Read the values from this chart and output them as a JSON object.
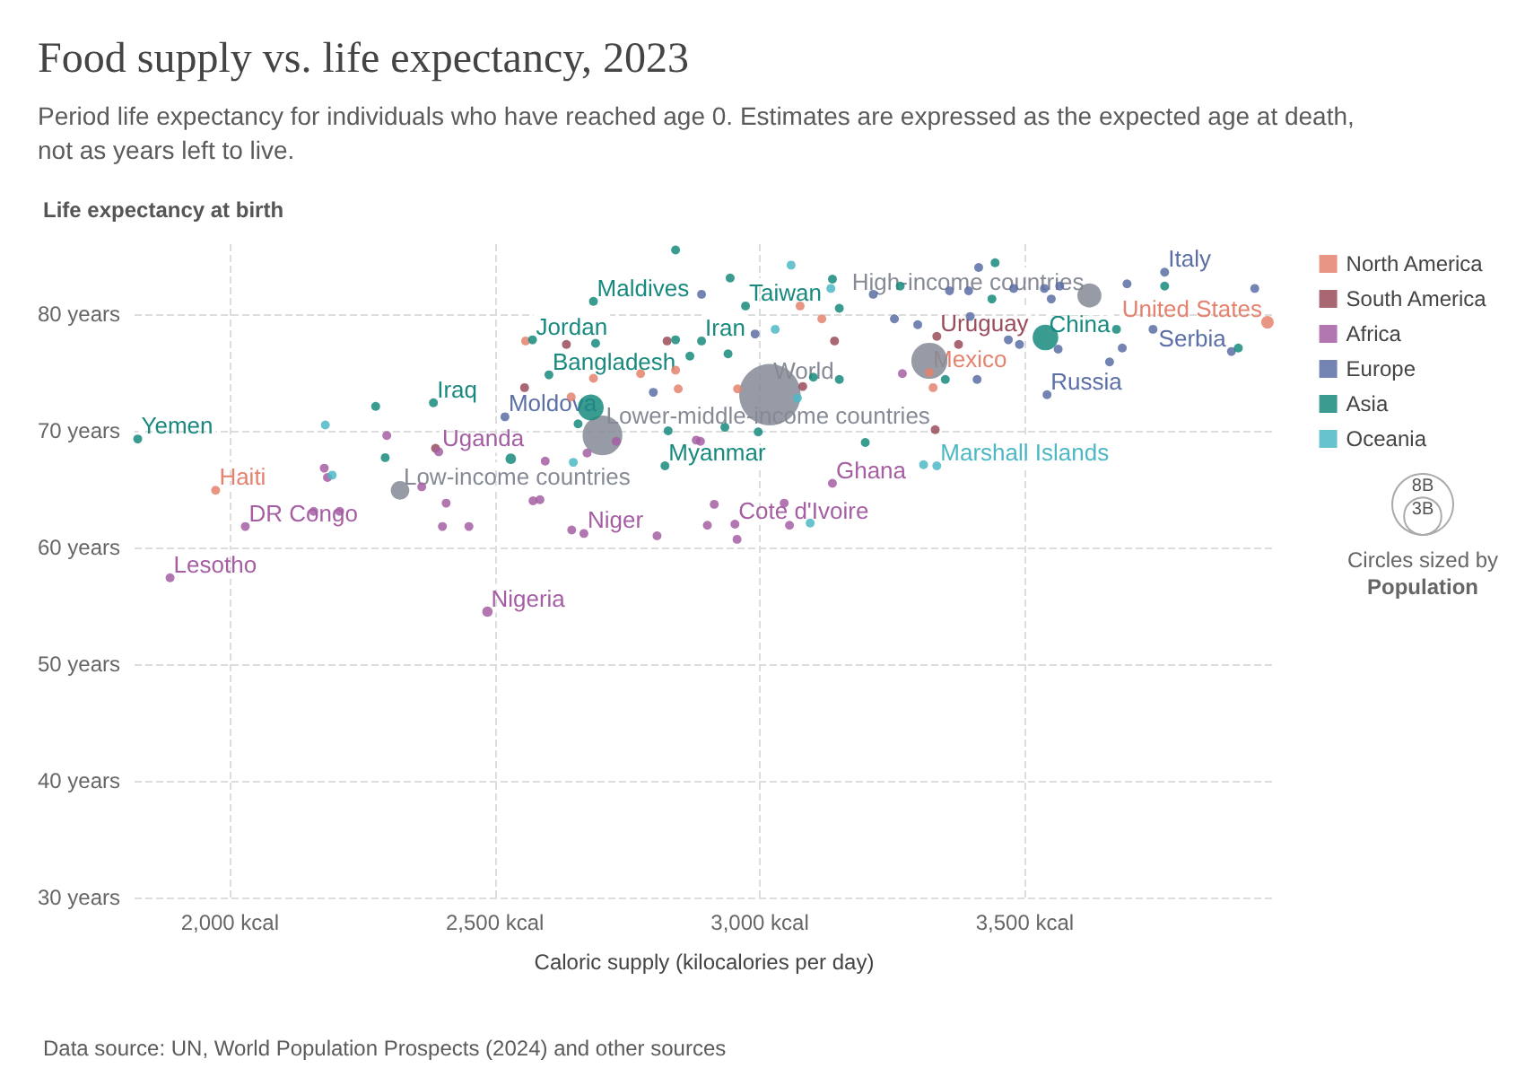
{
  "chart_data": {
    "type": "bubble",
    "title": "Food supply vs. life expectancy, 2023",
    "subtitle": "Period life expectancy for individuals who have reached age 0. Estimates are expressed as the expected age at death, not as years left to live.",
    "xlabel": "Caloric supply (kilocalories per day)",
    "ylabel": "Life expectancy at birth",
    "xlim": [
      1820,
      3970
    ],
    "ylim": [
      30,
      86
    ],
    "xticks": [
      {
        "value": 2000,
        "label": "2,000 kcal"
      },
      {
        "value": 2500,
        "label": "2,500 kcal"
      },
      {
        "value": 3000,
        "label": "3,000 kcal"
      },
      {
        "value": 3500,
        "label": "3,500 kcal"
      }
    ],
    "yticks": [
      {
        "value": 30,
        "label": "30 years"
      },
      {
        "value": 40,
        "label": "40 years"
      },
      {
        "value": 50,
        "label": "50 years"
      },
      {
        "value": 60,
        "label": "60 years"
      },
      {
        "value": 70,
        "label": "70 years"
      },
      {
        "value": 80,
        "label": "80 years"
      }
    ],
    "grid": true,
    "legend": "right",
    "size_legend": [
      {
        "value": 8,
        "label": "8B"
      },
      {
        "value": 3,
        "label": "3B"
      }
    ],
    "series": [
      {
        "color": "#858a95",
        "x": [
          3019,
          2703,
          3320,
          3622,
          2321
        ],
        "values": [
          73.1,
          69.6,
          76.0,
          81.6,
          64.9
        ],
        "sizes": [
          8.1,
          3.4,
          2.8,
          1.25,
          0.74
        ]
      },
      {
        "name": "North America",
        "color": "#e5826f",
        "x": [
          1973,
          3958,
          3320,
          2558,
          2686,
          2644,
          2775,
          2841,
          2846,
          3117,
          3076,
          3327,
          2958
        ],
        "values": [
          64.9,
          79.3,
          75.0,
          77.7,
          74.5,
          72.9,
          74.9,
          75.2,
          73.6,
          79.6,
          80.7,
          73.7,
          73.6
        ],
        "sizes": [
          0.17,
          0.34,
          0.17,
          0.17,
          0.17,
          0.17,
          0.17,
          0.17,
          0.17,
          0.17,
          0.17,
          0.17,
          0.17
        ]
      },
      {
        "name": "South America",
        "color": "#9a4c5a",
        "x": [
          3334,
          3331,
          2635,
          2556,
          2825,
          2388,
          3141,
          3375,
          3081
        ],
        "values": [
          78.1,
          70.1,
          77.4,
          73.7,
          77.7,
          68.5,
          77.7,
          77.4,
          73.8
        ],
        "sizes": [
          0.17,
          0.17,
          0.17,
          0.17,
          0.17,
          0.17,
          0.17,
          0.17,
          0.17
        ]
      },
      {
        "name": "Africa",
        "color": "#a55ea3",
        "x": [
          2486,
          2029,
          1887,
          2668,
          2394,
          3137,
          2953,
          2184,
          2178,
          2296,
          2362,
          2408,
          2451,
          2401,
          2207,
          2158,
          2585,
          2572,
          2674,
          2595,
          2645,
          2806,
          2901,
          3046,
          3056,
          2888,
          3269,
          2957,
          2914,
          2880,
          2729
        ],
        "values": [
          54.5,
          61.8,
          57.4,
          61.2,
          68.2,
          65.5,
          62.0,
          66.0,
          66.8,
          69.6,
          65.2,
          63.8,
          61.8,
          61.8,
          63.1,
          63.1,
          64.1,
          64.0,
          68.1,
          67.4,
          61.5,
          61.0,
          61.9,
          63.8,
          61.9,
          69.1,
          74.9,
          60.7,
          63.7,
          69.2,
          69.1
        ],
        "sizes": [
          0.23,
          0.17,
          0.17,
          0.17,
          0.17,
          0.17,
          0.17,
          0.17,
          0.17,
          0.17,
          0.17,
          0.17,
          0.17,
          0.17,
          0.17,
          0.17,
          0.17,
          0.17,
          0.17,
          0.17,
          0.17,
          0.17,
          0.17,
          0.17,
          0.17,
          0.17,
          0.17,
          0.17,
          0.17,
          0.17,
          0.17
        ]
      },
      {
        "name": "Europe",
        "color": "#5b6fa6",
        "x": [
          2519,
          3764,
          3890,
          3542,
          2890,
          2991,
          3214,
          3254,
          3298,
          3358,
          3394,
          3413,
          3397,
          3479,
          3537,
          3566,
          3550,
          3469,
          3490,
          3563,
          3410,
          3660,
          3684,
          3693,
          3742,
          3934,
          2799
        ],
        "values": [
          71.2,
          83.6,
          76.8,
          73.1,
          81.7,
          78.3,
          81.7,
          79.6,
          79.1,
          82.0,
          82.0,
          84.0,
          79.8,
          82.2,
          82.2,
          82.4,
          81.3,
          77.8,
          77.4,
          77.0,
          74.4,
          75.9,
          77.1,
          82.6,
          78.7,
          82.2,
          73.3
        ],
        "sizes": [
          0.17,
          0.17,
          0.17,
          0.17,
          0.17,
          0.17,
          0.17,
          0.17,
          0.17,
          0.17,
          0.17,
          0.17,
          0.17,
          0.17,
          0.17,
          0.17,
          0.17,
          0.17,
          0.17,
          0.17,
          0.17,
          0.17,
          0.17,
          0.17,
          0.17,
          0.17,
          0.17
        ]
      },
      {
        "name": "Asia",
        "color": "#18897e",
        "x": [
          1826,
          2384,
          2681,
          2686,
          2571,
          2602,
          2821,
          2530,
          2973,
          2890,
          3539,
          2944,
          3137,
          3150,
          2868,
          2940,
          2997,
          2934,
          3101,
          3150,
          3199,
          3265,
          3444,
          3438,
          3673,
          3764,
          3903,
          3350,
          2275,
          2293,
          2657,
          2690,
          2841,
          2841,
          2827
        ],
        "values": [
          69.3,
          72.4,
          72.0,
          81.1,
          77.8,
          74.8,
          67.0,
          67.6,
          80.7,
          77.7,
          78.0,
          83.1,
          83.0,
          80.5,
          76.4,
          76.6,
          69.9,
          70.3,
          74.6,
          74.4,
          69.0,
          82.4,
          84.4,
          81.3,
          78.7,
          82.4,
          77.1,
          74.4,
          72.1,
          67.7,
          70.6,
          77.5,
          85.5,
          77.8,
          70.0
        ],
        "sizes": [
          0.17,
          0.17,
          1.44,
          0.17,
          0.17,
          0.17,
          0.17,
          0.24,
          0.17,
          0.17,
          1.42,
          0.17,
          0.17,
          0.17,
          0.17,
          0.17,
          0.17,
          0.17,
          0.17,
          0.17,
          0.17,
          0.17,
          0.17,
          0.17,
          0.17,
          0.17,
          0.17,
          0.17,
          0.17,
          0.17,
          0.17,
          0.17,
          0.17,
          0.17,
          0.17
        ]
      },
      {
        "name": "Oceania",
        "color": "#4cb8c4",
        "x": [
          3334,
          2180,
          2193,
          2648,
          3059,
          3134,
          3029,
          3309,
          3095,
          3071
        ],
        "values": [
          67.0,
          70.5,
          66.2,
          67.3,
          84.2,
          82.2,
          78.7,
          67.1,
          62.1,
          72.8
        ],
        "sizes": [
          0.17,
          0.17,
          0.17,
          0.17,
          0.17,
          0.17,
          0.17,
          0.17,
          0.17,
          0.17
        ]
      }
    ],
    "annotations": [
      {
        "text": "World",
        "x": 3019,
        "y": 73.1
      },
      {
        "text": "Lower-middle-income countries",
        "x": 2703,
        "y": 69.6
      },
      {
        "text": "High-income countries",
        "x": 3622,
        "y": 81.6
      },
      {
        "text": "Low-income countries",
        "x": 2321,
        "y": 64.9
      },
      {
        "text": "Haiti",
        "x": 1973,
        "y": 64.9
      },
      {
        "text": "United States",
        "x": 3958,
        "y": 79.3
      },
      {
        "text": "Mexico",
        "x": 3320,
        "y": 75.0
      },
      {
        "text": "Uruguay",
        "x": 3334,
        "y": 78.1
      },
      {
        "text": "Nigeria",
        "x": 2486,
        "y": 54.5
      },
      {
        "text": "DR Congo",
        "x": 2029,
        "y": 61.8
      },
      {
        "text": "Lesotho",
        "x": 1887,
        "y": 57.4
      },
      {
        "text": "Niger",
        "x": 2668,
        "y": 61.2
      },
      {
        "text": "Uganda",
        "x": 2394,
        "y": 68.2
      },
      {
        "text": "Ghana",
        "x": 3137,
        "y": 65.5
      },
      {
        "text": "Cote d'Ivoire",
        "x": 2953,
        "y": 62.0
      },
      {
        "text": "Moldova",
        "x": 2519,
        "y": 71.2
      },
      {
        "text": "Italy",
        "x": 3764,
        "y": 83.6
      },
      {
        "text": "Serbia",
        "x": 3890,
        "y": 76.8
      },
      {
        "text": "Russia",
        "x": 3542,
        "y": 73.1
      },
      {
        "text": "Yemen",
        "x": 1826,
        "y": 69.3
      },
      {
        "text": "Iraq",
        "x": 2384,
        "y": 72.4
      },
      {
        "text": "Maldives",
        "x": 2686,
        "y": 81.1
      },
      {
        "text": "Jordan",
        "x": 2571,
        "y": 77.8
      },
      {
        "text": "Bangladesh",
        "x": 2602,
        "y": 74.8
      },
      {
        "text": "Myanmar",
        "x": 2821,
        "y": 67.0
      },
      {
        "text": "Taiwan",
        "x": 2973,
        "y": 80.7
      },
      {
        "text": "Iran",
        "x": 2890,
        "y": 77.7
      },
      {
        "text": "China",
        "x": 3539,
        "y": 78.0
      },
      {
        "text": "Marshall Islands",
        "x": 3334,
        "y": 67.0
      },
      "Circles sized by",
      "Population",
      "Data source: UN, World Population Prospects (2024) and other sources"
    ]
  }
}
